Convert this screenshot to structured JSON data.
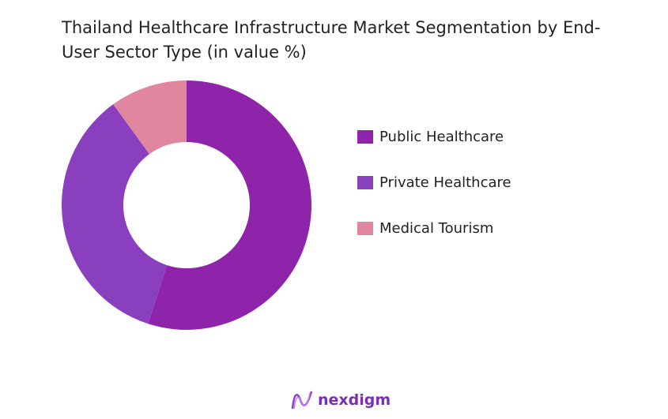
{
  "chart_data": {
    "type": "pie",
    "variant": "donut",
    "title": "Thailand Healthcare Infrastructure Market Segmentation by End-User Sector Type (in value %)",
    "categories": [
      "Public Healthcare",
      "Private Healthcare",
      "Medical Tourism"
    ],
    "values": [
      55,
      35,
      10
    ],
    "colors": [
      "#8E24AA",
      "#8A3FBF",
      "#E0879F"
    ],
    "legend_position": "right"
  },
  "brand": {
    "name": "nexdigm"
  }
}
